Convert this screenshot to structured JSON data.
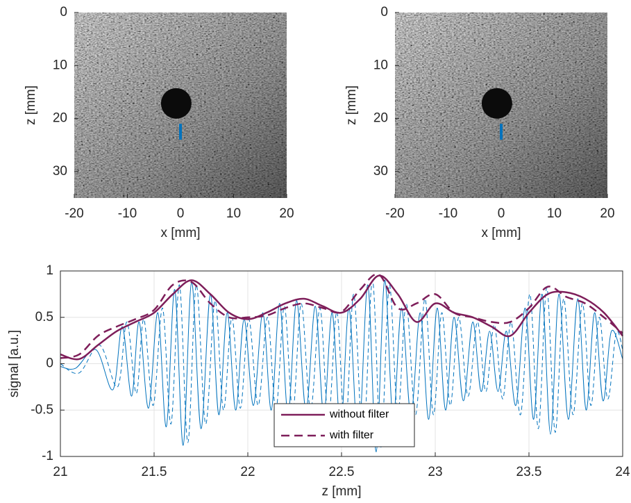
{
  "chart_data": [
    {
      "type": "image",
      "xlabel": "x [mm]",
      "ylabel": "z [mm]",
      "xlim": [
        -20,
        20
      ],
      "ylim": [
        35,
        0
      ],
      "xticks": [
        -20,
        -10,
        0,
        10,
        20
      ],
      "yticks": [
        0,
        10,
        20,
        30
      ],
      "series": [
        {
          "color": "#0072bd",
          "x": [
            0,
            0
          ],
          "values": [
            21,
            24
          ]
        }
      ]
    },
    {
      "type": "image",
      "xlabel": "x [mm]",
      "ylabel": "z [mm]",
      "xlim": [
        -20,
        20
      ],
      "ylim": [
        35,
        0
      ],
      "xticks": [
        -20,
        -10,
        0,
        10,
        20
      ],
      "yticks": [
        0,
        10,
        20,
        30
      ],
      "series": [
        {
          "color": "#0072bd",
          "x": [
            0,
            0
          ],
          "values": [
            21,
            24
          ]
        }
      ]
    },
    {
      "type": "line",
      "xlabel": "z [mm]",
      "ylabel": "signal [a.u.]",
      "xlim": [
        21,
        24
      ],
      "ylim": [
        -1,
        1
      ],
      "xticks": [
        21,
        21.5,
        22,
        22.5,
        23,
        23.5,
        24
      ],
      "yticks": [
        -1,
        -0.5,
        0,
        0.5,
        1
      ],
      "grid": true,
      "legend": "lower center",
      "series": [
        {
          "color": "#0072bd",
          "linestyle": "solid",
          "linewidth": 1,
          "x": [
            21.0,
            21.08,
            21.19,
            21.28,
            21.33,
            21.38,
            21.42,
            21.47,
            21.52,
            21.565,
            21.61,
            21.655,
            21.7,
            21.75,
            21.8,
            21.845,
            21.89,
            21.935,
            21.98,
            22.03,
            22.08,
            22.125,
            22.17,
            22.215,
            22.26,
            22.31,
            22.36,
            22.405,
            22.45,
            22.495,
            22.54,
            22.59,
            22.64,
            22.685,
            22.73,
            22.775,
            22.82,
            22.87,
            22.92,
            22.965,
            23.01,
            23.055,
            23.1,
            23.15,
            23.2,
            23.245,
            23.29,
            23.335,
            23.38,
            23.43,
            23.48,
            23.525,
            23.57,
            23.615,
            23.66,
            23.71,
            23.76,
            23.805,
            23.85,
            23.895,
            23.94,
            24.0
          ],
          "values": [
            -0.03,
            -0.05,
            0.15,
            -0.28,
            0.4,
            -0.35,
            0.45,
            -0.48,
            0.55,
            -0.68,
            0.8,
            -0.88,
            0.88,
            -0.7,
            0.75,
            -0.55,
            0.55,
            -0.5,
            0.48,
            -0.45,
            0.55,
            -0.5,
            0.65,
            -0.55,
            0.68,
            -0.5,
            0.62,
            -0.55,
            0.55,
            -0.7,
            0.6,
            -0.85,
            0.85,
            -0.95,
            0.9,
            -0.6,
            0.6,
            -0.55,
            0.55,
            -0.6,
            0.6,
            -0.5,
            0.5,
            -0.4,
            0.45,
            -0.3,
            0.35,
            -0.3,
            0.35,
            -0.45,
            0.6,
            -0.6,
            0.75,
            -0.76,
            0.75,
            -0.6,
            0.7,
            -0.5,
            0.55,
            -0.4,
            0.35,
            0.05
          ]
        },
        {
          "color": "#0072bd",
          "linestyle": "dashed",
          "linewidth": 1,
          "x": [
            21.0,
            21.1,
            21.21,
            21.305,
            21.355,
            21.405,
            21.445,
            21.495,
            21.545,
            21.59,
            21.635,
            21.68,
            21.725,
            21.775,
            21.825,
            21.87,
            21.915,
            21.96,
            22.005,
            22.055,
            22.105,
            22.15,
            22.195,
            22.24,
            22.285,
            22.335,
            22.385,
            22.43,
            22.475,
            22.52,
            22.565,
            22.615,
            22.665,
            22.71,
            22.755,
            22.8,
            22.845,
            22.895,
            22.945,
            22.99,
            23.035,
            23.08,
            23.125,
            23.175,
            23.225,
            23.27,
            23.315,
            23.36,
            23.405,
            23.455,
            23.505,
            23.55,
            23.595,
            23.64,
            23.685,
            23.735,
            23.785,
            23.83,
            23.875,
            23.92,
            23.965,
            24.0
          ],
          "values": [
            0.0,
            -0.1,
            0.2,
            -0.25,
            0.45,
            -0.32,
            0.48,
            -0.45,
            0.6,
            -0.65,
            0.85,
            -0.85,
            0.85,
            -0.65,
            0.68,
            -0.5,
            0.5,
            -0.48,
            0.48,
            -0.45,
            0.5,
            -0.5,
            0.62,
            -0.52,
            0.65,
            -0.5,
            0.6,
            -0.6,
            0.56,
            -0.75,
            0.75,
            -0.85,
            0.9,
            -0.9,
            0.85,
            -0.55,
            0.65,
            -0.55,
            0.7,
            -0.55,
            0.55,
            -0.45,
            0.5,
            -0.35,
            0.45,
            -0.3,
            0.42,
            -0.38,
            0.45,
            -0.55,
            0.75,
            -0.7,
            0.82,
            -0.74,
            0.7,
            -0.55,
            0.65,
            -0.45,
            0.5,
            -0.38,
            0.33,
            0.15
          ]
        },
        {
          "name": "without filter",
          "color": "#7e1e5a",
          "linestyle": "solid",
          "linewidth": 2.5,
          "x": [
            21.0,
            21.1,
            21.2,
            21.3,
            21.4,
            21.5,
            21.6,
            21.7,
            21.8,
            21.9,
            22.0,
            22.1,
            22.2,
            22.3,
            22.4,
            22.5,
            22.6,
            22.7,
            22.8,
            22.9,
            23.0,
            23.1,
            23.2,
            23.3,
            23.4,
            23.5,
            23.6,
            23.7,
            23.8,
            23.9,
            24.0
          ],
          "values": [
            0.1,
            0.05,
            0.2,
            0.35,
            0.45,
            0.55,
            0.75,
            0.9,
            0.75,
            0.55,
            0.48,
            0.55,
            0.65,
            0.7,
            0.62,
            0.55,
            0.7,
            0.95,
            0.75,
            0.45,
            0.65,
            0.55,
            0.5,
            0.4,
            0.3,
            0.55,
            0.75,
            0.77,
            0.7,
            0.55,
            0.3
          ]
        },
        {
          "name": "with filter",
          "color": "#7e1e5a",
          "linestyle": "dashed",
          "linewidth": 2.5,
          "x": [
            21.0,
            21.1,
            21.2,
            21.3,
            21.4,
            21.5,
            21.6,
            21.7,
            21.8,
            21.9,
            22.0,
            22.1,
            22.2,
            22.3,
            22.4,
            22.5,
            22.6,
            22.7,
            22.8,
            22.9,
            23.0,
            23.1,
            23.2,
            23.3,
            23.4,
            23.5,
            23.6,
            23.7,
            23.8,
            23.9,
            24.0
          ],
          "values": [
            0.06,
            0.1,
            0.3,
            0.4,
            0.48,
            0.58,
            0.85,
            0.88,
            0.65,
            0.5,
            0.5,
            0.52,
            0.6,
            0.65,
            0.6,
            0.56,
            0.8,
            0.96,
            0.6,
            0.65,
            0.75,
            0.55,
            0.5,
            0.45,
            0.45,
            0.6,
            0.83,
            0.72,
            0.65,
            0.5,
            0.33
          ]
        }
      ]
    }
  ]
}
